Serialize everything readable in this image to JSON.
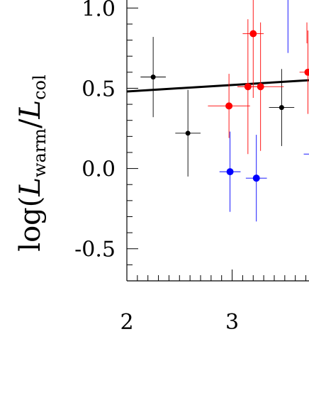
{
  "chart_data": {
    "type": "scatter",
    "ylabel": {
      "prefix": "log(",
      "L1": "L",
      "sub1": "warm",
      "slash": "/",
      "L2": "L",
      "sub2": "col"
    },
    "xlim": [
      2,
      3.73
    ],
    "ylim": [
      -0.7,
      1.05
    ],
    "x_ticks": [
      2,
      3
    ],
    "x_tick_labels": [
      "2",
      "3"
    ],
    "y_ticks": [
      -0.5,
      0.0,
      0.5,
      1.0
    ],
    "y_tick_labels": [
      "-0.5",
      "0.0",
      "0.5",
      "1.0"
    ],
    "grid": false,
    "fit_line": {
      "x": [
        2,
        3.73
      ],
      "y": [
        0.48,
        0.55
      ],
      "color": "#000000"
    },
    "series": [
      {
        "color": "#000000",
        "points": [
          {
            "x": 2.25,
            "y": 0.57,
            "xerr": 0.12,
            "yerr": 0.25
          },
          {
            "x": 2.58,
            "y": 0.22,
            "xerr": 0.12,
            "yerr": 0.27
          },
          {
            "x": 3.47,
            "y": 0.38,
            "xerr": 0.12,
            "yerr": 0.24
          }
        ]
      },
      {
        "color": "#ff0000",
        "points": [
          {
            "x": 2.97,
            "y": 0.39,
            "xerr": 0.2,
            "yerr": 0.2
          },
          {
            "x": 3.15,
            "y": 0.51,
            "xerr": 0.1,
            "yerr": 0.42
          },
          {
            "x": 3.2,
            "y": 0.84,
            "xerr": 0.1,
            "yerr": 0.4
          },
          {
            "x": 3.27,
            "y": 0.51,
            "xerr": 0.22,
            "yerr": 0.4
          },
          {
            "x": 3.72,
            "y": 0.6,
            "xerr": 0.08,
            "yerr": 0.26
          }
        ]
      },
      {
        "color": "#0000ff",
        "points": [
          {
            "x": 2.98,
            "y": -0.02,
            "xerr": 0.1,
            "yerr": 0.25
          },
          {
            "x": 3.23,
            "y": -0.06,
            "xerr": 0.1,
            "yerr": 0.27
          }
        ]
      }
    ],
    "partial_marks": [
      {
        "type": "vline",
        "x": 3.53,
        "y_from": 1.05,
        "y_to": 0.72,
        "color": "#0000ff"
      },
      {
        "type": "hline",
        "y": 0.09,
        "x_from": 3.68,
        "x_to": 3.73,
        "color": "#0000ff"
      },
      {
        "type": "vline",
        "x": 3.71,
        "y_from": 0.91,
        "y_to": 0.78,
        "color": "#ff0000"
      }
    ]
  }
}
